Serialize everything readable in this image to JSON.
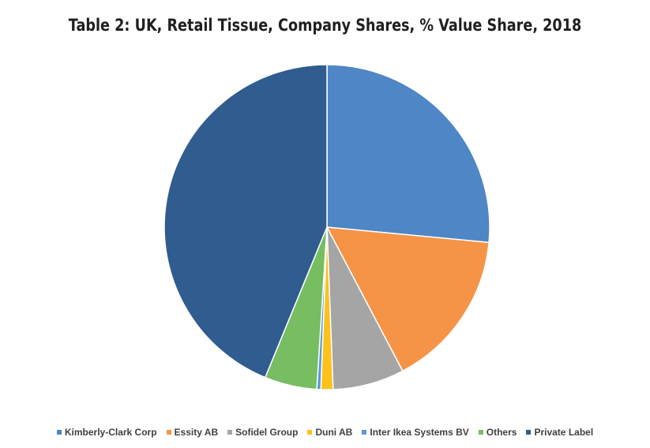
{
  "chart_data": {
    "type": "pie",
    "title": "Table 2: UK, Retail Tissue, Company Shares, % Value Share, 2018",
    "legend_position": "bottom",
    "categories": [
      "Kimberly-Clark Corp",
      "Essity AB",
      "Sofidel Group",
      "Duni AB",
      "Inter Ikea Systems BV",
      "Others",
      "Private Label"
    ],
    "values": [
      26.5,
      15.8,
      7.1,
      1.2,
      0.4,
      5.2,
      43.8
    ],
    "colors": [
      "#4e86c6",
      "#f59447",
      "#a5a5a5",
      "#fdc11c",
      "#5b9bd5",
      "#77bd62",
      "#305c90"
    ]
  }
}
